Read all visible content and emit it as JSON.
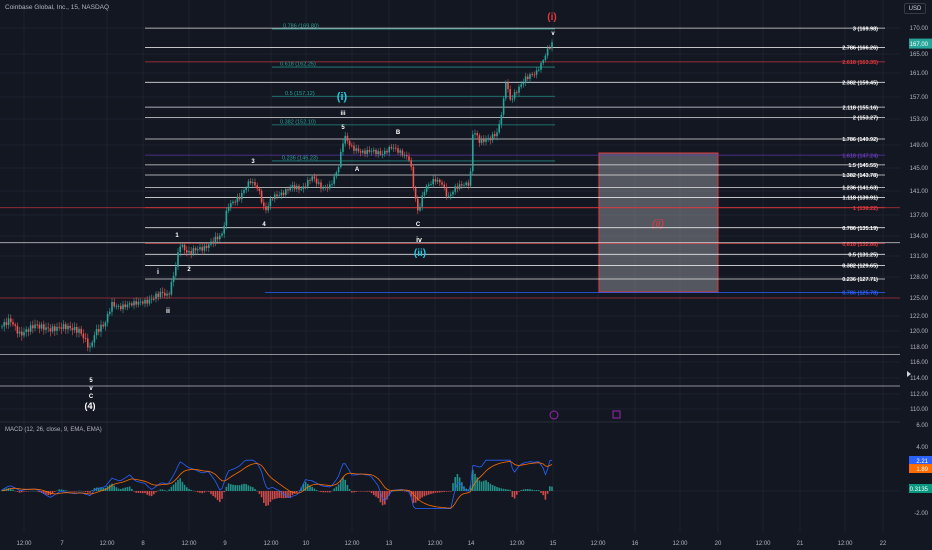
{
  "header": {
    "title": "Coinbase Global, Inc., 15, NASDAQ",
    "currency": "USD"
  },
  "macd": {
    "title": "MACD (12, 26, close, 9, EMA, EMA)",
    "badges": [
      {
        "text": "2.21",
        "color": "#2962ff"
      },
      {
        "text": "1.89",
        "color": "#ff6d00"
      },
      {
        "text": "0.3135",
        "color": "#089981"
      }
    ],
    "ticks": [
      "6.00",
      "4.00",
      "2.00",
      "-2.00"
    ]
  },
  "chart_data": {
    "type": "candlestick",
    "price_axis": {
      "ticks": [
        "170.00",
        "165.00",
        "161.00",
        "157.00",
        "153.00",
        "149.00",
        "145.00",
        "141.00",
        "137.00",
        "134.00",
        "131.00",
        "128.00",
        "125.00",
        "122.00",
        "120.00",
        "118.00",
        "116.00",
        "114.00",
        "112.00",
        "110.00"
      ],
      "last_price": "167.00"
    },
    "time_axis": [
      "12:00",
      "7",
      "12:00",
      "8",
      "12:00",
      "9",
      "12:00",
      "10",
      "12:00",
      "13",
      "12:00",
      "14",
      "12:00",
      "15",
      "12:00",
      "16",
      "12:00",
      "20",
      "12:00",
      "21",
      "12:00",
      "22"
    ],
    "fib_extension_levels": [
      {
        "label": "3 (169.98)",
        "color": "#ffffff"
      },
      {
        "label": "2.786 (166.26)",
        "color": "#ffffff"
      },
      {
        "label": "2.618 (163.35)",
        "color": "#e0393e"
      },
      {
        "label": "2.382 (159.45)",
        "color": "#ffffff"
      },
      {
        "label": "2.118 (155.16)",
        "color": "#ffffff"
      },
      {
        "label": "2 (153.27)",
        "color": "#ffffff"
      },
      {
        "label": "1.786 (149.92)",
        "color": "#ffffff"
      },
      {
        "label": "1.618 (147.24)",
        "color": "#673ab7"
      },
      {
        "label": "1.5 (145.55)",
        "color": "#ffffff"
      },
      {
        "label": "1.382 (143.78)",
        "color": "#ffffff"
      },
      {
        "label": "1.236 (141.63)",
        "color": "#ffffff"
      },
      {
        "label": "1.118 (139.91)",
        "color": "#ffffff"
      },
      {
        "label": "1 (138.22)",
        "color": "#e0393e"
      }
    ],
    "fib_retracement_levels": [
      {
        "label": "0.786 (135.19)",
        "color": "#ffffff"
      },
      {
        "label": "0.618 (132.86)",
        "color": "#e0393e"
      },
      {
        "label": "0.5 (131.25)",
        "color": "#ffffff"
      },
      {
        "label": "0.382 (129.65)",
        "color": "#ffffff"
      },
      {
        "label": "0.236 (127.71)",
        "color": "#ffffff"
      },
      {
        "label": "0.786 (125.78)",
        "color": "#2962ff"
      }
    ],
    "inner_fib_levels": [
      {
        "label": "0.786 (169.80)",
        "color": "#26a69a"
      },
      {
        "label": "0.618 (162.25)",
        "color": "#26a69a"
      },
      {
        "label": "0.5 (157.12)",
        "color": "#26a69a"
      },
      {
        "label": "0.382 (152.10)",
        "color": "#26a69a"
      },
      {
        "label": "0.236 (146.23)",
        "color": "#26a69a"
      }
    ],
    "wave_labels": [
      {
        "text": "(i)",
        "color": "#e0393e"
      },
      {
        "text": "v",
        "color": "#ffffff"
      },
      {
        "text": "(i)",
        "color": "#26c6da"
      },
      {
        "text": "iii",
        "color": "#ffffff"
      },
      {
        "text": "5",
        "color": "#ffffff"
      },
      {
        "text": "B",
        "color": "#ffffff"
      },
      {
        "text": "3",
        "color": "#ffffff"
      },
      {
        "text": "A",
        "color": "#ffffff"
      },
      {
        "text": "4",
        "color": "#ffffff"
      },
      {
        "text": "C",
        "color": "#ffffff"
      },
      {
        "text": "iv",
        "color": "#ffffff"
      },
      {
        "text": "(ii)",
        "color": "#26c6da"
      },
      {
        "text": "1",
        "color": "#ffffff"
      },
      {
        "text": "2",
        "color": "#ffffff"
      },
      {
        "text": "i",
        "color": "#ffffff"
      },
      {
        "text": "ii",
        "color": "#ffffff"
      },
      {
        "text": "5",
        "color": "#ffffff"
      },
      {
        "text": "v",
        "color": "#ffffff"
      },
      {
        "text": "C",
        "color": "#ffffff"
      },
      {
        "text": "(4)",
        "color": "#ffffff"
      },
      {
        "text": "(ii)",
        "color": "#e0393e"
      }
    ],
    "target_zone_label": "(ii)",
    "series": [
      {
        "name": "MACD",
        "color": "#2962ff"
      },
      {
        "name": "Signal",
        "color": "#ff6d00"
      }
    ]
  }
}
